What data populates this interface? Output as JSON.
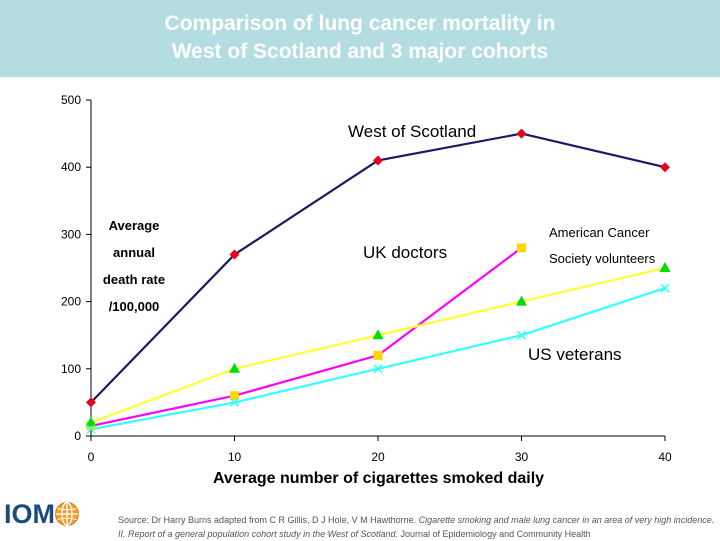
{
  "header": {
    "title": "Comparison of lung cancer mortality in\nWest of Scotland and 3 major cohorts"
  },
  "chart_data": {
    "type": "line",
    "xlabel": "Average number of cigarettes smoked daily",
    "ylabel_lines": [
      "Average",
      "annual",
      "death rate",
      "/100,000"
    ],
    "xlim": [
      0,
      40
    ],
    "ylim": [
      0,
      500
    ],
    "xticks": [
      0,
      10,
      20,
      30,
      40
    ],
    "yticks": [
      0,
      100,
      200,
      300,
      400,
      500
    ],
    "grid": false,
    "series": [
      {
        "name": "West of Scotland",
        "color": "#1a1a66",
        "marker": "diamond",
        "marker_color": "#e8001c",
        "x": [
          0,
          10,
          20,
          30,
          40
        ],
        "y": [
          50,
          270,
          410,
          450,
          400
        ]
      },
      {
        "name": "UK doctors",
        "color": "#ff00ff",
        "marker": "square",
        "marker_color": "#ffd700",
        "x": [
          0,
          10,
          20,
          30
        ],
        "y": [
          15,
          60,
          120,
          280
        ]
      },
      {
        "name_lines": [
          "American Cancer",
          "Society volunteers"
        ],
        "color": "#ffff33",
        "marker": "triangle",
        "marker_color": "#00dd00",
        "x": [
          0,
          10,
          20,
          30,
          40
        ],
        "y": [
          20,
          100,
          150,
          200,
          250
        ]
      },
      {
        "name": "US veterans",
        "color": "#33ffff",
        "marker": "x",
        "marker_color": "#33ffff",
        "x": [
          0,
          10,
          20,
          30,
          40
        ],
        "y": [
          10,
          50,
          100,
          150,
          220
        ]
      }
    ]
  },
  "footer": {
    "logo_text": "IOM",
    "source_prefix": "Source: Dr Harry Burns adapted from C R Gillis, D J Hole, V M Hawthorne. ",
    "source_italic": "Cigarette smoking and male lung cancer in an area of very high incidence. II. Report of a general population cohort study in the West of Scotland.",
    "source_suffix": " Journal of Epidemiology and Community Health"
  }
}
